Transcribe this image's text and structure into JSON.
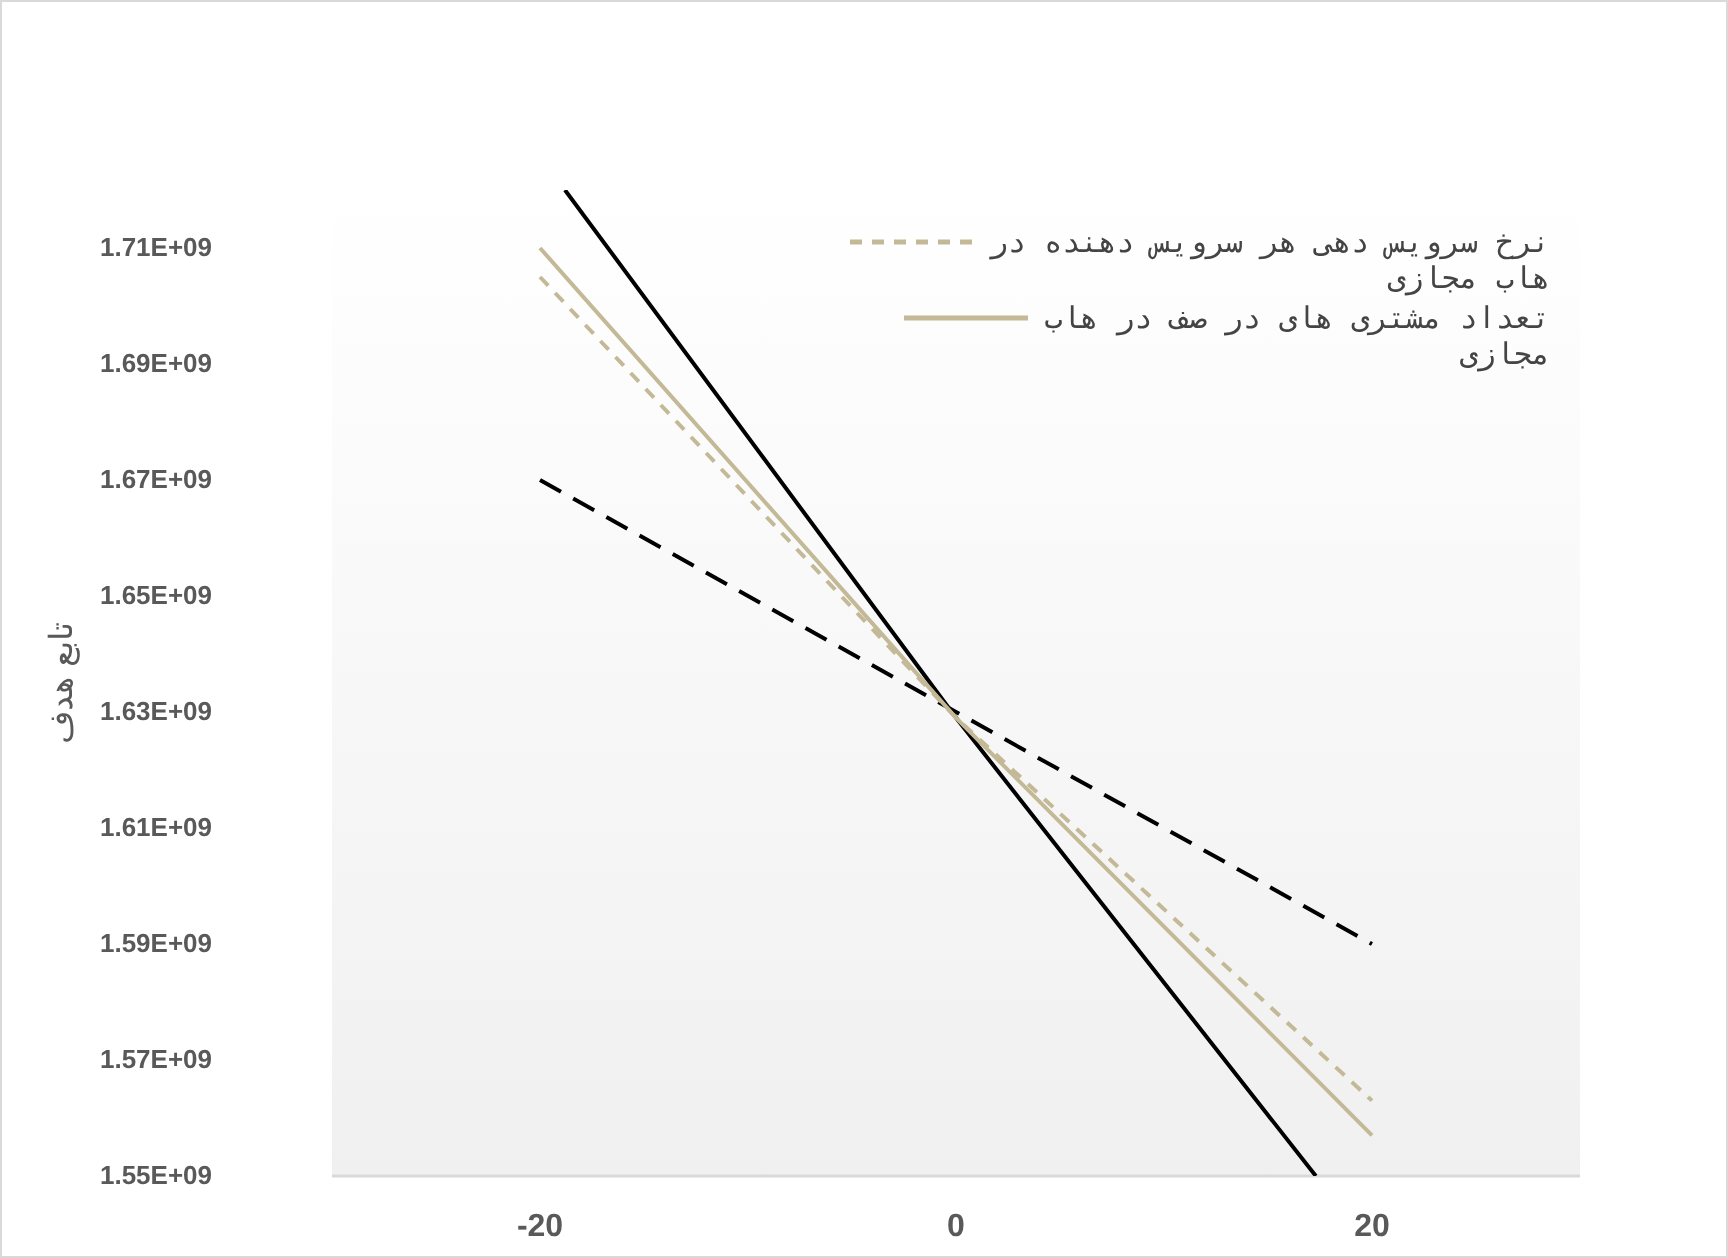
{
  "chart_data": {
    "type": "line",
    "ylabel": "تابع هدف",
    "xlim": [
      -30,
      30
    ],
    "xticks": [
      -20,
      0,
      20
    ],
    "ylim": [
      1550000000,
      1720000000
    ],
    "yticks": [
      {
        "value": 1550000000,
        "label": "1.55E+09"
      },
      {
        "value": 1570000000,
        "label": "1.57E+09"
      },
      {
        "value": 1590000000,
        "label": "1.59E+09"
      },
      {
        "value": 1610000000,
        "label": "1.61E+09"
      },
      {
        "value": 1630000000,
        "label": "1.63E+09"
      },
      {
        "value": 1650000000,
        "label": "1.65E+09"
      },
      {
        "value": 1670000000,
        "label": "1.67E+09"
      },
      {
        "value": 1690000000,
        "label": "1.69E+09"
      },
      {
        "value": 1710000000,
        "label": "1.71E+09"
      }
    ],
    "legend": "top right",
    "marker": "none",
    "series": [
      {
        "color": "#000000",
        "x": [
          -20,
          0,
          20
        ],
        "values": [
          1670000000,
          1630000000,
          1590000000
        ],
        "line_style": "dashed"
      },
      {
        "color": "#000000",
        "x": [
          -18.8,
          0,
          17.3
        ],
        "values": [
          1720000000,
          1629000000,
          1550000000
        ],
        "line_style": "solid"
      },
      {
        "name": "نرخ سرویس دهی هر سرویس دهنده در هاب مجازی",
        "color": "#c4b996",
        "x": [
          -20,
          0,
          20
        ],
        "values": [
          1705000000,
          1629000000,
          1563000000
        ],
        "line_style": "dashed"
      },
      {
        "name": "تعداد مشتری های در صف در هاب مجازی",
        "color": "#c4b996",
        "x": [
          -20,
          0,
          20
        ],
        "values": [
          1710000000,
          1629000000,
          1557000000
        ],
        "line_style": "solid"
      }
    ]
  }
}
